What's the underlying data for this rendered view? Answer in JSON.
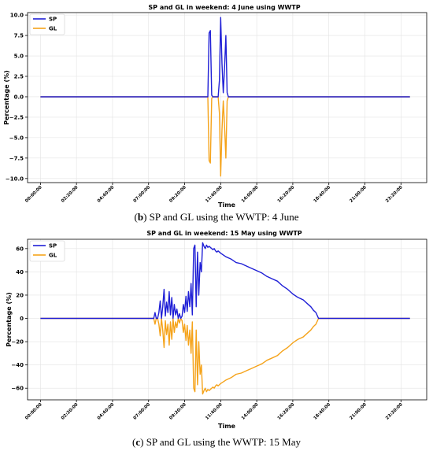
{
  "chart_data": [
    {
      "type": "line",
      "title": "SP and GL in weekend: 4 June using WWTP",
      "xlabel": "Time",
      "ylabel": "Percentage (%)",
      "caption_bold": "b",
      "caption_rest": " SP and GL using the WWTP: 4 June",
      "ylim": [
        -10.5,
        10.3
      ],
      "yticks": [
        -10.0,
        -7.5,
        -5.0,
        -2.5,
        0.0,
        2.5,
        5.0,
        7.5,
        10.0
      ],
      "ytick_labels": [
        "−10.0",
        "−7.5",
        "−5.0",
        "−2.5",
        "0.0",
        "2.5",
        "5.0",
        "7.5",
        "10.0"
      ],
      "xlim": [
        -50,
        1500
      ],
      "xticks": [
        0,
        140,
        280,
        420,
        560,
        700,
        840,
        980,
        1120,
        1260,
        1400
      ],
      "xtick_labels": [
        "00:00:00",
        "02:20:00",
        "04:40:00",
        "07:00:00",
        "09:20:00",
        "11:40:00",
        "14:00:00",
        "16:20:00",
        "18:40:00",
        "21:00:00",
        "23:20:00"
      ],
      "grid": true,
      "legend_position": "top-left",
      "series": [
        {
          "name": "SP",
          "color": "#1f1fd6",
          "x": [
            0,
            635,
            650,
            655,
            660,
            665,
            670,
            680,
            690,
            695,
            700,
            705,
            710,
            715,
            720,
            725,
            730,
            735,
            745,
            1435
          ],
          "y": [
            0,
            0,
            0,
            7.8,
            8.1,
            0.2,
            0,
            0,
            0,
            2,
            9.7,
            4,
            0.5,
            3.5,
            7.5,
            0.5,
            0,
            0,
            0,
            0
          ]
        },
        {
          "name": "GL",
          "color": "#f5a31a",
          "x": [
            0,
            635,
            650,
            655,
            660,
            665,
            670,
            680,
            690,
            695,
            700,
            705,
            710,
            715,
            720,
            725,
            730,
            735,
            745,
            1435
          ],
          "y": [
            0,
            0,
            0,
            -7.8,
            -8.1,
            -0.2,
            0,
            0,
            0,
            -2,
            -9.7,
            -4,
            -0.5,
            -3.5,
            -7.5,
            -0.5,
            0,
            0,
            0,
            0
          ]
        }
      ]
    },
    {
      "type": "line",
      "title": "SP and GL in weekend: 15 May using WWTP",
      "xlabel": "Time",
      "ylabel": "Percentage (%)",
      "caption_bold": "c",
      "caption_rest": " SP and GL using the WWTP: 15 May",
      "ylim": [
        -70,
        68
      ],
      "yticks": [
        -60,
        -40,
        -20,
        0,
        20,
        40,
        60
      ],
      "ytick_labels": [
        "−60",
        "−40",
        "−20",
        "0",
        "20",
        "40",
        "60"
      ],
      "xlim": [
        -50,
        1500
      ],
      "xticks": [
        0,
        140,
        280,
        420,
        560,
        700,
        840,
        980,
        1120,
        1260,
        1400
      ],
      "xtick_labels": [
        "00:00:00",
        "02:20:00",
        "04:40:00",
        "07:00:00",
        "09:20:00",
        "11:40:00",
        "14:00:00",
        "16:20:00",
        "18:40:00",
        "21:00:00",
        "23:20:00"
      ],
      "grid": true,
      "legend_position": "top-left",
      "series": [
        {
          "name": "SP",
          "color": "#1f1fd6",
          "x": [
            0,
            440,
            445,
            450,
            455,
            460,
            465,
            470,
            475,
            480,
            485,
            490,
            495,
            500,
            505,
            510,
            515,
            520,
            525,
            530,
            535,
            540,
            545,
            550,
            555,
            560,
            565,
            570,
            575,
            580,
            585,
            590,
            595,
            600,
            605,
            610,
            615,
            620,
            625,
            630,
            635,
            640,
            645,
            650,
            655,
            660,
            665,
            670,
            675,
            680,
            685,
            690,
            700,
            720,
            740,
            760,
            780,
            800,
            820,
            840,
            860,
            880,
            900,
            920,
            940,
            960,
            980,
            1000,
            1020,
            1040,
            1050,
            1060,
            1070,
            1080,
            1100,
            1435
          ],
          "y": [
            0,
            0,
            5,
            0,
            0,
            5,
            15,
            0,
            10,
            25,
            2,
            14,
            5,
            23,
            3,
            18,
            0,
            12,
            3,
            8,
            0,
            4,
            0,
            2,
            12,
            5,
            19,
            6,
            23,
            10,
            30,
            3,
            60,
            63,
            10,
            57,
            20,
            48,
            40,
            65,
            62,
            60,
            63,
            61,
            62,
            61,
            60,
            59,
            60,
            58,
            57,
            58,
            56,
            53,
            51,
            48,
            47,
            45,
            43,
            41,
            39,
            36,
            34,
            32,
            28,
            25,
            21,
            18,
            16,
            12,
            10,
            7,
            5,
            0,
            0,
            0
          ]
        },
        {
          "name": "GL",
          "color": "#f5a31a",
          "x": [
            0,
            440,
            445,
            450,
            455,
            460,
            465,
            470,
            475,
            480,
            485,
            490,
            495,
            500,
            505,
            510,
            515,
            520,
            525,
            530,
            535,
            540,
            545,
            550,
            555,
            560,
            565,
            570,
            575,
            580,
            585,
            590,
            595,
            600,
            605,
            610,
            615,
            620,
            625,
            630,
            635,
            640,
            645,
            650,
            655,
            660,
            665,
            670,
            675,
            680,
            685,
            690,
            700,
            720,
            740,
            760,
            780,
            800,
            820,
            840,
            860,
            880,
            900,
            920,
            940,
            960,
            980,
            1000,
            1020,
            1040,
            1050,
            1060,
            1070,
            1080,
            1100,
            1435
          ],
          "y": [
            0,
            0,
            -5,
            0,
            0,
            -5,
            -15,
            0,
            -10,
            -25,
            -2,
            -14,
            -5,
            -23,
            -3,
            -18,
            0,
            -12,
            -3,
            -8,
            0,
            -4,
            0,
            -2,
            -12,
            -5,
            -19,
            -6,
            -23,
            -10,
            -30,
            -3,
            -60,
            -63,
            -10,
            -57,
            -20,
            -48,
            -40,
            -65,
            -62,
            -60,
            -63,
            -61,
            -62,
            -61,
            -60,
            -59,
            -60,
            -58,
            -57,
            -58,
            -56,
            -53,
            -51,
            -48,
            -47,
            -45,
            -43,
            -41,
            -39,
            -36,
            -34,
            -32,
            -28,
            -25,
            -21,
            -18,
            -16,
            -12,
            -10,
            -7,
            -5,
            0,
            0,
            0
          ]
        }
      ]
    }
  ]
}
